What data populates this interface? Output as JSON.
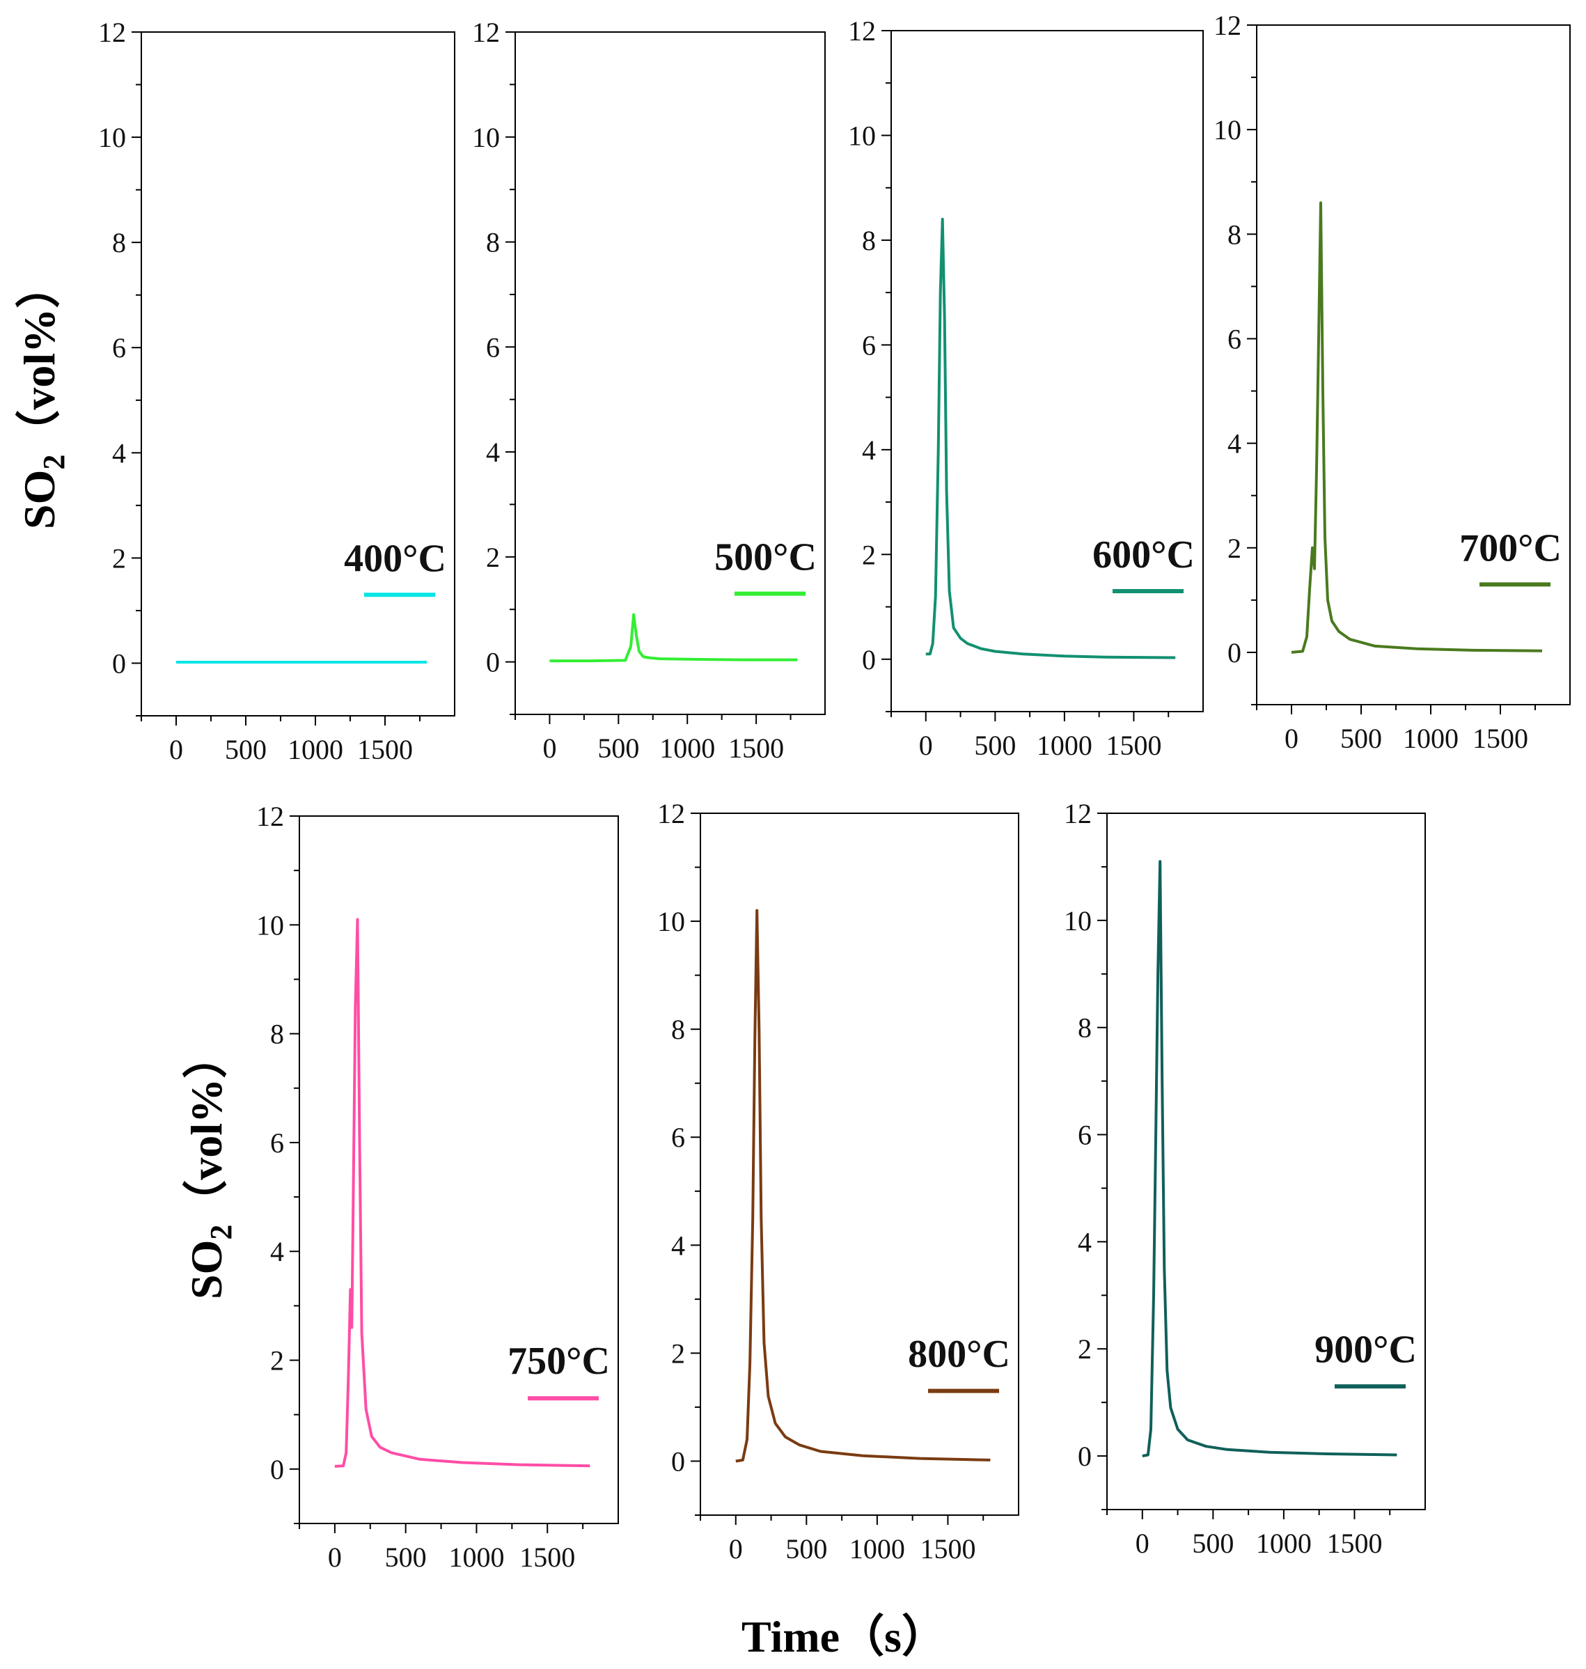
{
  "figure": {
    "ylabel": "SO2 (vol%)",
    "ylabel_main": "SO",
    "ylabel_sub": "2",
    "ylabel_unit": "（vol%）",
    "xlabel": "Time（s）"
  },
  "chart_data": [
    {
      "type": "line",
      "temperature": "400°C",
      "color": "#00e5e5",
      "xlim": [
        -250,
        2000
      ],
      "ylim": [
        -1,
        12
      ],
      "yticks": [
        0,
        2,
        4,
        6,
        8,
        10,
        12
      ],
      "xticks": [
        0,
        500,
        1000,
        1500
      ],
      "xtick_labels": [
        "0",
        "500",
        "1000",
        "1500"
      ],
      "x": [
        0,
        300,
        600,
        900,
        1200,
        1500,
        1800
      ],
      "y": [
        0.02,
        0.02,
        0.02,
        0.02,
        0.02,
        0.02,
        0.02
      ]
    },
    {
      "type": "line",
      "temperature": "500°C",
      "color": "#33ee33",
      "xlim": [
        -250,
        2000
      ],
      "ylim": [
        -1,
        12
      ],
      "yticks": [
        0,
        2,
        4,
        6,
        8,
        10,
        12
      ],
      "xticks": [
        0,
        500,
        1000,
        1500
      ],
      "xtick_labels": [
        "0",
        "500",
        "1000",
        "1500"
      ],
      "x": [
        0,
        300,
        550,
        590,
        610,
        630,
        650,
        680,
        720,
        800,
        1000,
        1400,
        1800
      ],
      "y": [
        0.02,
        0.02,
        0.03,
        0.3,
        0.9,
        0.5,
        0.2,
        0.1,
        0.08,
        0.06,
        0.05,
        0.04,
        0.04
      ]
    },
    {
      "type": "line",
      "temperature": "600°C",
      "color": "#129070",
      "xlim": [
        -250,
        2000
      ],
      "ylim": [
        -1,
        12
      ],
      "yticks": [
        0,
        2,
        4,
        6,
        8,
        10,
        12
      ],
      "xticks": [
        0,
        500,
        1000,
        1500
      ],
      "xtick_labels": [
        "0",
        "500",
        "1000",
        "1500"
      ],
      "x": [
        0,
        30,
        50,
        70,
        90,
        105,
        120,
        135,
        150,
        170,
        200,
        250,
        300,
        400,
        500,
        700,
        1000,
        1300,
        1800
      ],
      "y": [
        0.1,
        0.1,
        0.3,
        1.2,
        4,
        7,
        8.4,
        6.5,
        3.2,
        1.3,
        0.6,
        0.4,
        0.3,
        0.2,
        0.15,
        0.1,
        0.06,
        0.04,
        0.03
      ]
    },
    {
      "type": "line",
      "temperature": "700°C",
      "color": "#4a7a1e",
      "xlim": [
        -250,
        2000
      ],
      "ylim": [
        -1,
        12
      ],
      "yticks": [
        0,
        2,
        4,
        6,
        8,
        10,
        12
      ],
      "xticks": [
        0,
        500,
        1000,
        1500
      ],
      "xtick_labels": [
        "0",
        "500",
        "1000",
        "1500"
      ],
      "x": [
        0,
        80,
        110,
        130,
        150,
        165,
        180,
        195,
        210,
        225,
        240,
        260,
        290,
        340,
        420,
        600,
        900,
        1300,
        1800
      ],
      "y": [
        0,
        0.02,
        0.3,
        1.2,
        2.0,
        1.6,
        3.5,
        6,
        8.6,
        5,
        2.2,
        1,
        0.6,
        0.4,
        0.25,
        0.12,
        0.07,
        0.04,
        0.03
      ]
    },
    {
      "type": "line",
      "temperature": "750°C",
      "color": "#ff4da6",
      "xlim": [
        -250,
        2000
      ],
      "ylim": [
        -1,
        12
      ],
      "yticks": [
        0,
        2,
        4,
        6,
        8,
        10,
        12
      ],
      "xticks": [
        0,
        500,
        1000,
        1500
      ],
      "xtick_labels": [
        "0",
        "500",
        "1000",
        "1500"
      ],
      "x": [
        0,
        60,
        80,
        95,
        110,
        120,
        130,
        145,
        160,
        175,
        190,
        220,
        260,
        320,
        400,
        600,
        900,
        1300,
        1800
      ],
      "y": [
        0.05,
        0.06,
        0.3,
        1.6,
        3.3,
        2.6,
        5,
        8.5,
        10.1,
        6,
        2.5,
        1.1,
        0.6,
        0.4,
        0.3,
        0.18,
        0.12,
        0.08,
        0.06
      ]
    },
    {
      "type": "line",
      "temperature": "800°C",
      "color": "#7a3b12",
      "xlim": [
        -250,
        2000
      ],
      "ylim": [
        -1,
        12
      ],
      "yticks": [
        0,
        2,
        4,
        6,
        8,
        10,
        12
      ],
      "xticks": [
        0,
        500,
        1000,
        1500
      ],
      "xtick_labels": [
        "0",
        "500",
        "1000",
        "1500"
      ],
      "x": [
        0,
        50,
        80,
        100,
        120,
        135,
        150,
        165,
        180,
        200,
        230,
        280,
        350,
        450,
        600,
        900,
        1300,
        1800
      ],
      "y": [
        0,
        0.02,
        0.4,
        1.8,
        4.5,
        7.8,
        10.2,
        8,
        4.5,
        2.2,
        1.2,
        0.7,
        0.45,
        0.3,
        0.18,
        0.1,
        0.05,
        0.02
      ]
    },
    {
      "type": "line",
      "temperature": "900°C",
      "color": "#10605a",
      "xlim": [
        -250,
        2000
      ],
      "ylim": [
        -1,
        12
      ],
      "yticks": [
        0,
        2,
        4,
        6,
        8,
        10,
        12
      ],
      "xticks": [
        0,
        500,
        1000,
        1500
      ],
      "xtick_labels": [
        "0",
        "500",
        "1000",
        "1500"
      ],
      "x": [
        0,
        40,
        60,
        80,
        95,
        110,
        125,
        140,
        155,
        175,
        200,
        250,
        320,
        450,
        600,
        900,
        1300,
        1800
      ],
      "y": [
        0,
        0.02,
        0.5,
        3,
        6,
        9,
        11.1,
        7,
        3.5,
        1.6,
        0.9,
        0.5,
        0.3,
        0.18,
        0.12,
        0.07,
        0.04,
        0.02
      ]
    }
  ]
}
